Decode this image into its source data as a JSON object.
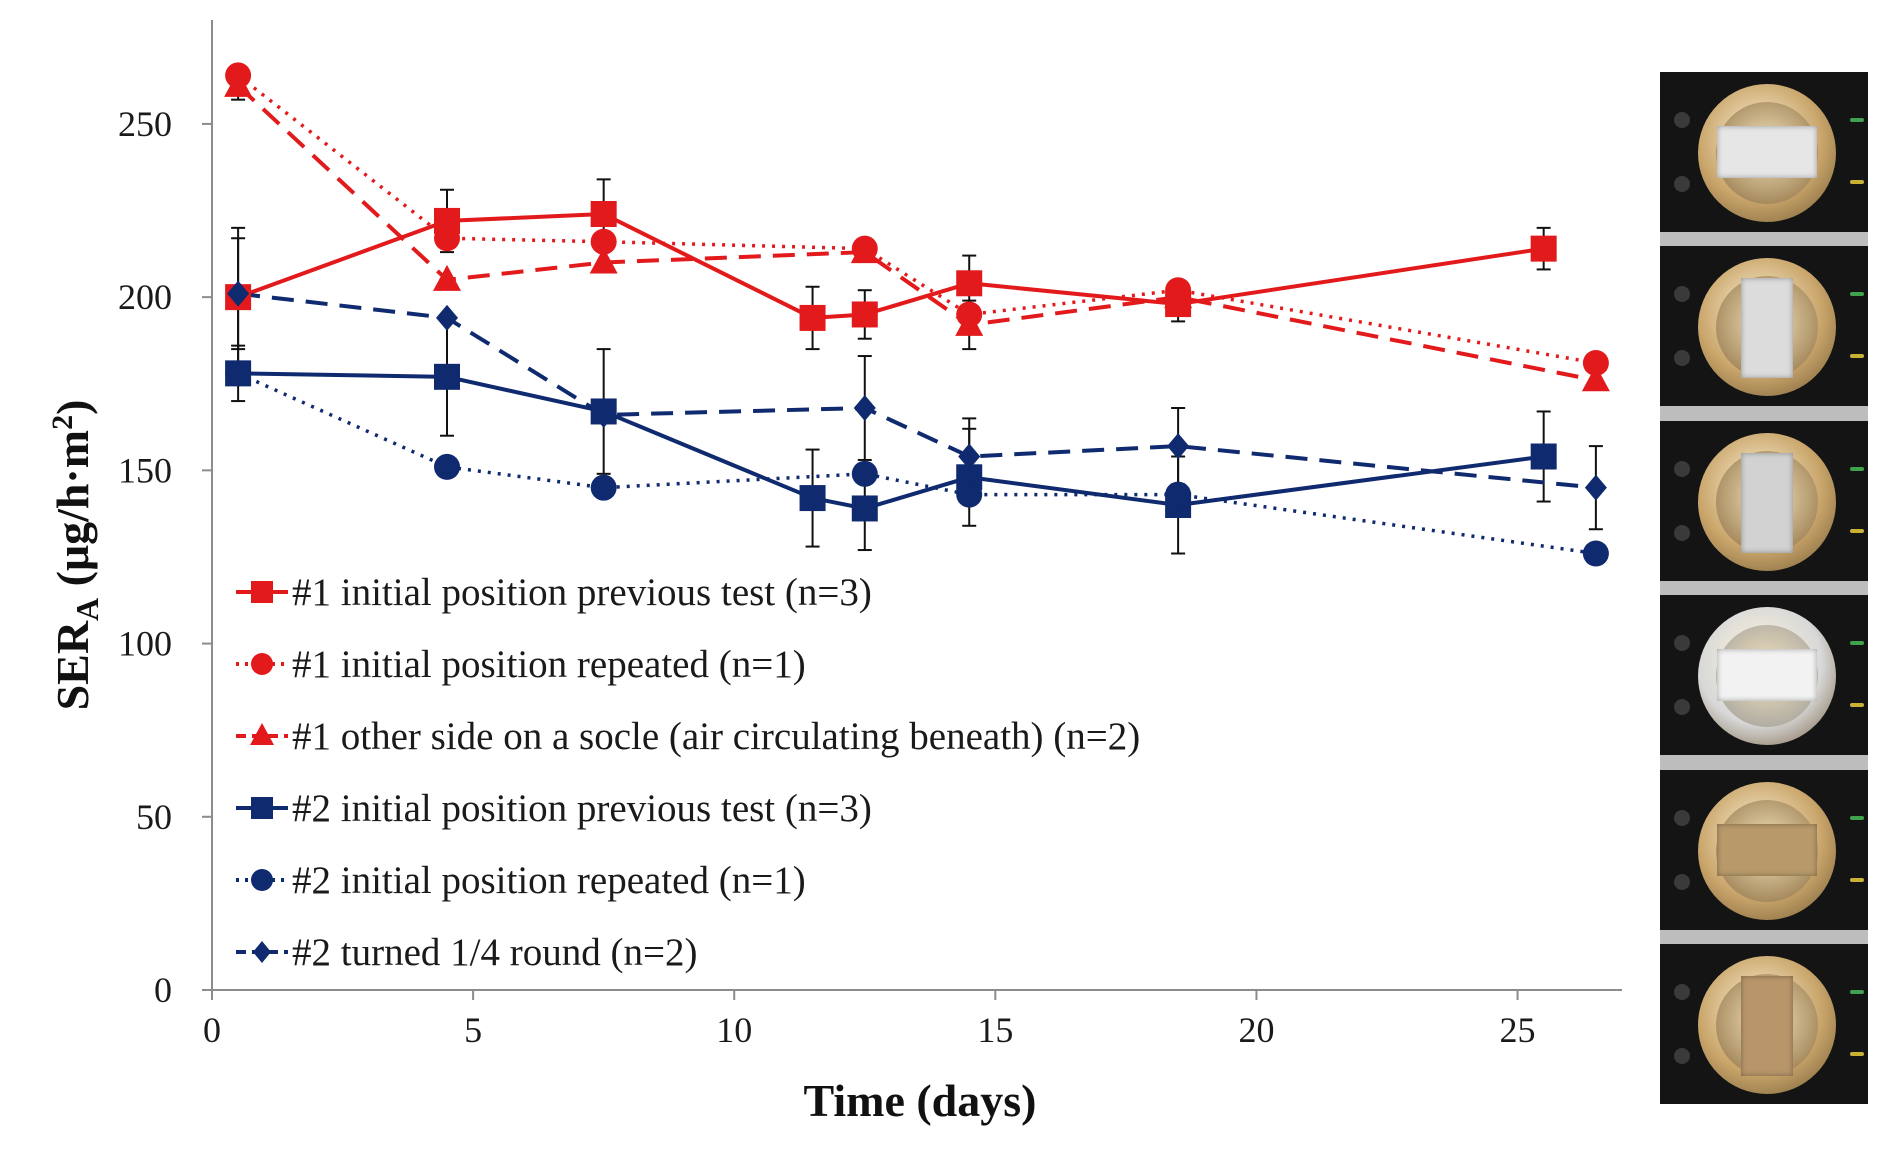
{
  "chart_data": {
    "type": "line",
    "title": "",
    "xlabel": "Time (days)",
    "ylabel_main": "SER",
    "ylabel_sub": "A",
    "ylabel_unit_prefix": " (μg/h·m",
    "ylabel_unit_sup": "2",
    "ylabel_unit_suffix": ")",
    "xlim": [
      0,
      27
    ],
    "ylim": [
      0,
      280
    ],
    "xticks": [
      0,
      5,
      10,
      15,
      20,
      25
    ],
    "yticks": [
      0,
      50,
      100,
      150,
      200,
      250
    ],
    "grid": false,
    "legend_position": "lower-left",
    "series": [
      {
        "name": "#1 initial position previous test (n=3)",
        "color": "#e31a1c",
        "marker": "square",
        "dash": "solid",
        "x": [
          0.5,
          4.5,
          7.5,
          11.5,
          12.5,
          14.5,
          18.5,
          25.5
        ],
        "y": [
          200,
          222,
          224,
          194,
          195,
          204,
          198,
          214
        ],
        "err": [
          20,
          9,
          10,
          9,
          7,
          8,
          5,
          6
        ]
      },
      {
        "name": "#1 initial position repeated (n=1)",
        "color": "#e31a1c",
        "marker": "circle",
        "dash": "dotted",
        "x": [
          0.5,
          4.5,
          7.5,
          12.5,
          14.5,
          18.5,
          26.5
        ],
        "y": [
          264,
          217,
          216,
          214,
          195,
          202,
          181
        ]
      },
      {
        "name": "#1 other side on a socle (air circulating beneath) (n=2)",
        "color": "#e31a1c",
        "marker": "triangle",
        "dash": "dashed",
        "x": [
          0.5,
          4.5,
          7.5,
          12.5,
          14.5,
          18.5,
          26.5
        ],
        "y": [
          261,
          205,
          210,
          213,
          192,
          200,
          176
        ],
        "err": [
          4,
          0,
          0,
          0,
          7,
          0,
          0
        ]
      },
      {
        "name": "#2 initial position previous test (n=3)",
        "color": "#0f2a6e",
        "marker": "square",
        "dash": "solid",
        "x": [
          0.5,
          4.5,
          7.5,
          11.5,
          12.5,
          14.5,
          18.5,
          25.5
        ],
        "y": [
          178,
          177,
          167,
          142,
          139,
          148,
          140,
          154
        ],
        "err": [
          8,
          17,
          18,
          14,
          12,
          14,
          14,
          13
        ]
      },
      {
        "name": "#2 initial position repeated (n=1)",
        "color": "#0f2a6e",
        "marker": "circle",
        "dash": "dotted",
        "x": [
          0.5,
          4.5,
          7.5,
          12.5,
          14.5,
          18.5,
          26.5
        ],
        "y": [
          178,
          151,
          145,
          149,
          143,
          143,
          126
        ]
      },
      {
        "name": "#2 turned 1/4 round (n=2)",
        "color": "#0f2a6e",
        "marker": "diamond",
        "dash": "dashed",
        "x": [
          0.5,
          4.5,
          7.5,
          12.5,
          14.5,
          18.5,
          26.5
        ],
        "y": [
          201,
          194,
          166,
          168,
          154,
          157,
          145
        ],
        "err": [
          16,
          0,
          0,
          15,
          11,
          11,
          12
        ]
      }
    ]
  },
  "photos": {
    "description_icon": "sample-photo-icon",
    "cells": [
      {
        "rim": "#c9a56a",
        "inner": "#8a6a3c",
        "sample": "#e6e6e6",
        "orientation": "horizontal",
        "wire": "#3fa34d"
      },
      {
        "rim": "#c9a56a",
        "inner": "#8a6a3c",
        "sample": "#dcdcdc",
        "orientation": "vertical",
        "wire": "#3fa34d"
      },
      {
        "rim": "#c9a56a",
        "inner": "#8a6a3c",
        "sample": "#d2d2d2",
        "orientation": "vertical",
        "wire": "#3fa34d"
      },
      {
        "rim": "#d8d8d8",
        "inner": "#9a9a9a",
        "sample": "#f2f2f2",
        "orientation": "horizontal",
        "wire": "#3fa34d"
      },
      {
        "rim": "#c9a56a",
        "inner": "#8a6a3c",
        "sample": "#b89a6a",
        "orientation": "horizontal",
        "wire": "#3fa34d"
      },
      {
        "rim": "#c9a56a",
        "inner": "#8a6a3c",
        "sample": "#b8966a",
        "orientation": "vertical",
        "wire": "#3fa34d"
      }
    ]
  }
}
